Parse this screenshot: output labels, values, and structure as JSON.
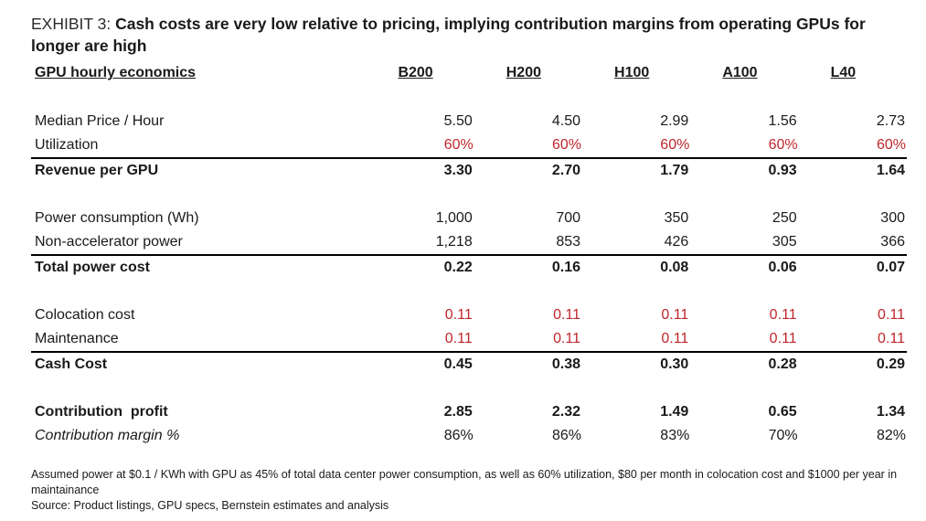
{
  "exhibit": {
    "label": "EXHIBIT 3: ",
    "headline": "Cash costs are very low relative to pricing, implying contribution margins from operating GPUs for longer are high"
  },
  "table": {
    "title": "GPU hourly economics",
    "columns": [
      "B200",
      "H200",
      "H100",
      "A100",
      "L40"
    ],
    "rows": {
      "median_price": {
        "label": "Median Price / Hour",
        "values": [
          "5.50",
          "4.50",
          "2.99",
          "1.56",
          "2.73"
        ]
      },
      "utilization": {
        "label": "Utilization",
        "values": [
          "60%",
          "60%",
          "60%",
          "60%",
          "60%"
        ]
      },
      "revenue": {
        "label": "Revenue per GPU",
        "values": [
          "3.30",
          "2.70",
          "1.79",
          "0.93",
          "1.64"
        ]
      },
      "power": {
        "label": "Power consumption (Wh)",
        "values": [
          "1,000",
          "700",
          "350",
          "250",
          "300"
        ]
      },
      "non_accel": {
        "label": "Non-accelerator power",
        "values": [
          "1,218",
          "853",
          "426",
          "305",
          "366"
        ]
      },
      "total_power": {
        "label": "Total power cost",
        "values": [
          "0.22",
          "0.16",
          "0.08",
          "0.06",
          "0.07"
        ]
      },
      "colocation": {
        "label": "Colocation cost",
        "values": [
          "0.11",
          "0.11",
          "0.11",
          "0.11",
          "0.11"
        ]
      },
      "maintenance": {
        "label": "Maintenance",
        "values": [
          "0.11",
          "0.11",
          "0.11",
          "0.11",
          "0.11"
        ]
      },
      "cash_cost": {
        "label": "Cash Cost",
        "values": [
          "0.45",
          "0.38",
          "0.30",
          "0.28",
          "0.29"
        ]
      },
      "contribution_profit": {
        "label": "Contribution  profit",
        "values": [
          "2.85",
          "2.32",
          "1.49",
          "0.65",
          "1.34"
        ]
      },
      "contribution_margin": {
        "label": "Contribution margin %",
        "values": [
          "86%",
          "86%",
          "83%",
          "70%",
          "82%"
        ]
      }
    }
  },
  "footnote": {
    "assumption": "Assumed power at $0.1 / KWh with GPU as 45% of total data center power consumption, as well as 60% utilization, $80 per month in colocation cost and $1000 per year in maintainance",
    "source": "Source: Product listings, GPU specs, Bernstein estimates and analysis"
  },
  "colors": {
    "input_red": "#c0262b",
    "text": "#1a1a1a",
    "rule": "#000000"
  }
}
